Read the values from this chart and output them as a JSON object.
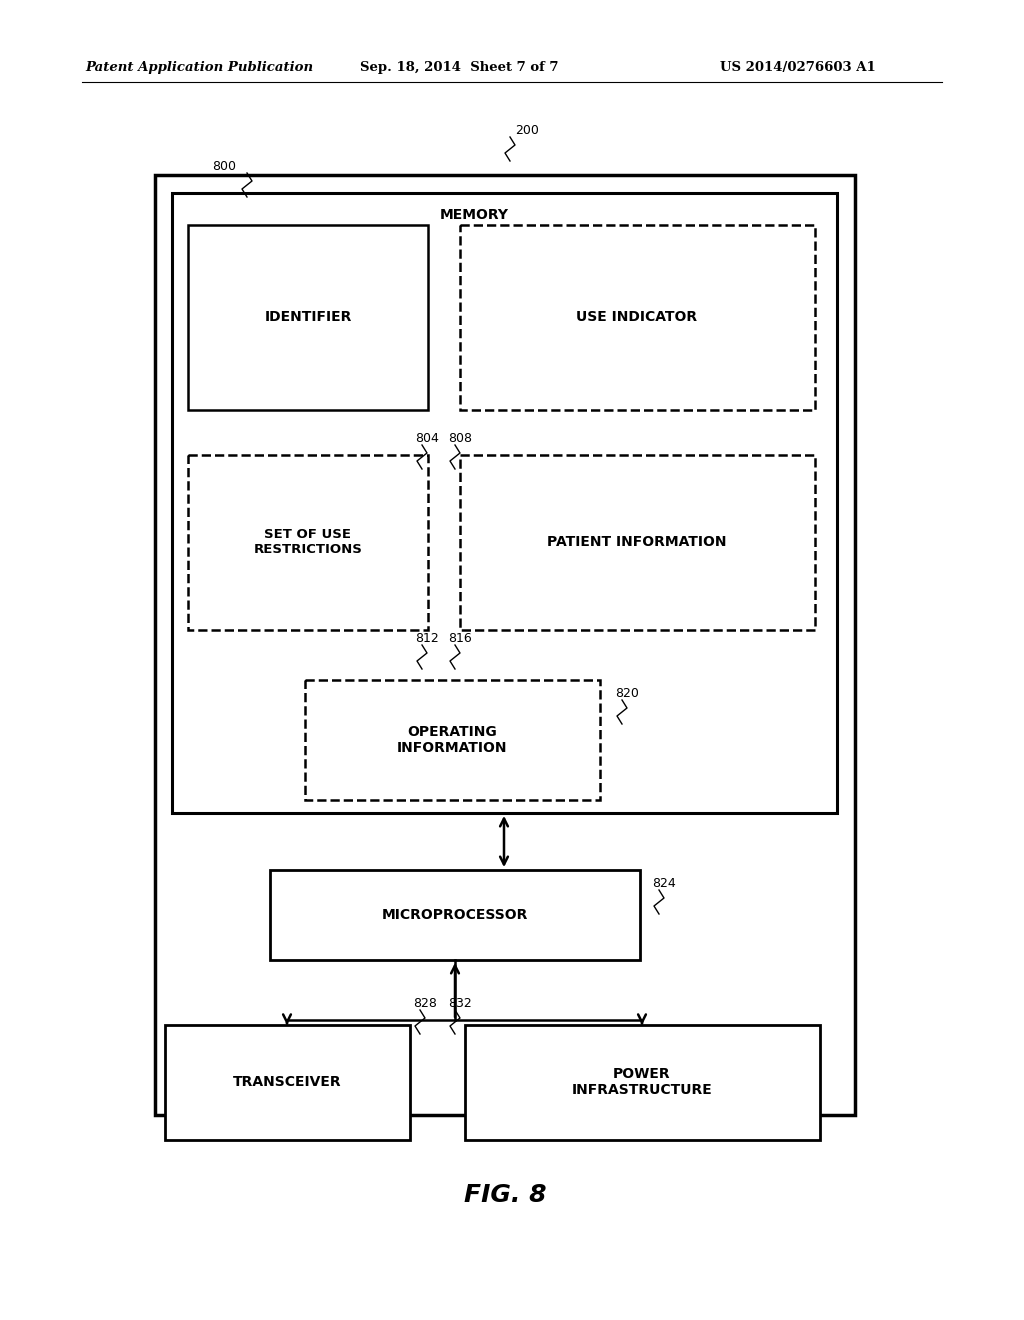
{
  "bg_color": "#ffffff",
  "header_left": "Patent Application Publication",
  "header_mid": "Sep. 18, 2014  Sheet 7 of 7",
  "header_right": "US 2014/0276603 A1",
  "fig_label": "FIG. 8",
  "ref_200": "200",
  "ref_800": "800",
  "memory_label": "MEMORY",
  "identifier_label": "IDENTIFIER",
  "use_indicator_label": "USE INDICATOR",
  "set_of_use_label": "SET OF USE\nRESTRICTIONS",
  "patient_info_label": "PATIENT INFORMATION",
  "operating_info_label": "OPERATING\nINFORMATION",
  "microprocessor_label": "MICROPROCESSOR",
  "transceiver_label": "TRANSCEIVER",
  "power_infra_label": "POWER\nINFRASTRUCTURE",
  "ref_804": "804",
  "ref_808": "808",
  "ref_812": "812",
  "ref_816": "816",
  "ref_820": "820",
  "ref_824": "824",
  "ref_828": "828",
  "ref_832": "832"
}
